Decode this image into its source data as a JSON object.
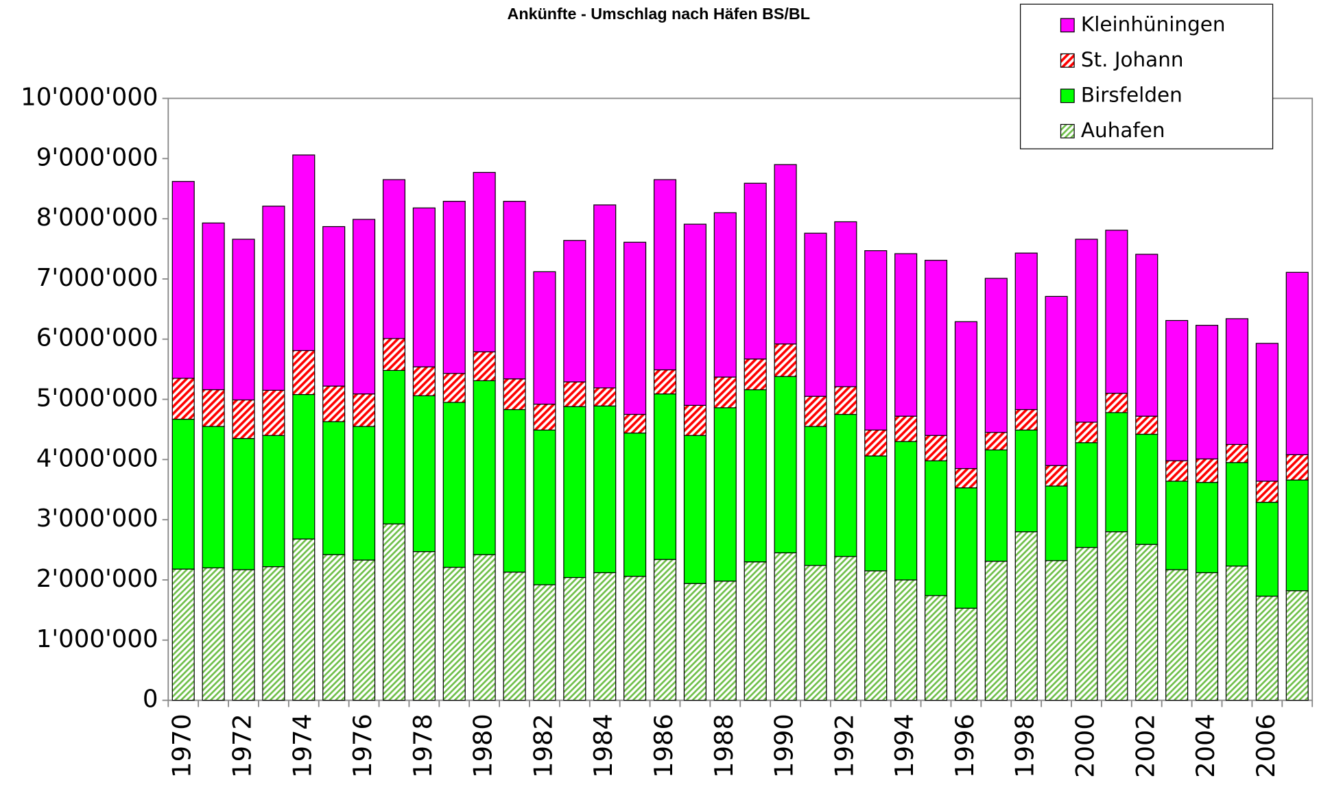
{
  "chart_data": {
    "type": "stacked-bar",
    "title": "Ankünfte - Umschlag nach Häfen BS/BL",
    "categories": [
      "1970",
      null,
      "1972",
      null,
      "1974",
      null,
      "1976",
      null,
      "1978",
      null,
      "1980",
      null,
      "1982",
      null,
      "1984",
      null,
      "1986",
      null,
      "1988",
      null,
      "1990",
      null,
      "1992",
      null,
      "1994",
      null,
      "1996",
      null,
      "1998",
      null,
      "2000",
      null,
      "2002",
      null,
      "2004",
      null,
      "2006",
      null
    ],
    "series": [
      {
        "name": "Auhafen",
        "color": "#6fbf4a",
        "pattern": "hatch",
        "values": [
          2180000,
          2200000,
          2170000,
          2220000,
          2680000,
          2420000,
          2330000,
          2930000,
          2470000,
          2210000,
          2420000,
          2130000,
          1920000,
          2040000,
          2120000,
          2060000,
          2340000,
          1940000,
          1980000,
          2300000,
          2450000,
          2240000,
          2390000,
          2150000,
          2000000,
          1740000,
          1530000,
          2310000,
          2800000,
          2320000,
          2540000,
          2800000,
          2590000,
          2170000,
          2120000,
          2230000,
          1730000,
          1820000
        ]
      },
      {
        "name": "Birsfelden",
        "color": "#00ff00",
        "values": [
          2490000,
          2350000,
          2180000,
          2180000,
          2400000,
          2210000,
          2220000,
          2550000,
          2590000,
          2740000,
          2890000,
          2700000,
          2570000,
          2840000,
          2770000,
          2380000,
          2750000,
          2460000,
          2880000,
          2860000,
          2930000,
          2310000,
          2360000,
          1910000,
          2300000,
          2240000,
          2000000,
          1850000,
          1690000,
          1240000,
          1740000,
          1980000,
          1830000,
          1470000,
          1500000,
          1720000,
          1560000,
          1840000
        ]
      },
      {
        "name": "St. Johann",
        "color": "#ff0000",
        "pattern": "hatch",
        "values": [
          680000,
          610000,
          640000,
          750000,
          730000,
          590000,
          540000,
          530000,
          480000,
          480000,
          480000,
          510000,
          430000,
          410000,
          300000,
          310000,
          400000,
          500000,
          510000,
          510000,
          540000,
          500000,
          460000,
          430000,
          420000,
          420000,
          320000,
          290000,
          340000,
          340000,
          340000,
          320000,
          300000,
          340000,
          390000,
          300000,
          350000,
          420000
        ]
      },
      {
        "name": "Kleinhüningen",
        "color": "#ff00ff",
        "values": [
          3270000,
          2770000,
          2670000,
          3060000,
          3250000,
          2650000,
          2900000,
          2640000,
          2640000,
          2860000,
          2980000,
          2950000,
          2200000,
          2350000,
          3040000,
          2860000,
          3160000,
          3010000,
          2730000,
          2920000,
          2980000,
          2710000,
          2740000,
          2980000,
          2700000,
          2910000,
          2440000,
          2560000,
          2600000,
          2810000,
          3040000,
          2710000,
          2690000,
          2330000,
          2220000,
          2090000,
          2290000,
          3030000
        ]
      }
    ],
    "ylim": [
      0,
      10000000
    ],
    "yticks": [
      0,
      {
        "value": 1000000,
        "label": "1'000'000"
      },
      {
        "value": 2000000,
        "label": "2'000'000"
      },
      {
        "value": 3000000,
        "label": "3'000'000"
      },
      {
        "value": 4000000,
        "label": "4'000'000"
      },
      {
        "value": 5000000,
        "label": "5'000'000"
      },
      {
        "value": 6000000,
        "label": "6'000'000"
      },
      {
        "value": 7000000,
        "label": "7'000'000"
      },
      {
        "value": 8000000,
        "label": "8'000'000"
      },
      {
        "value": 9000000,
        "label": "9'000'000"
      },
      {
        "value": 10000000,
        "label": "10'000'000"
      }
    ],
    "legend": "top-right"
  }
}
